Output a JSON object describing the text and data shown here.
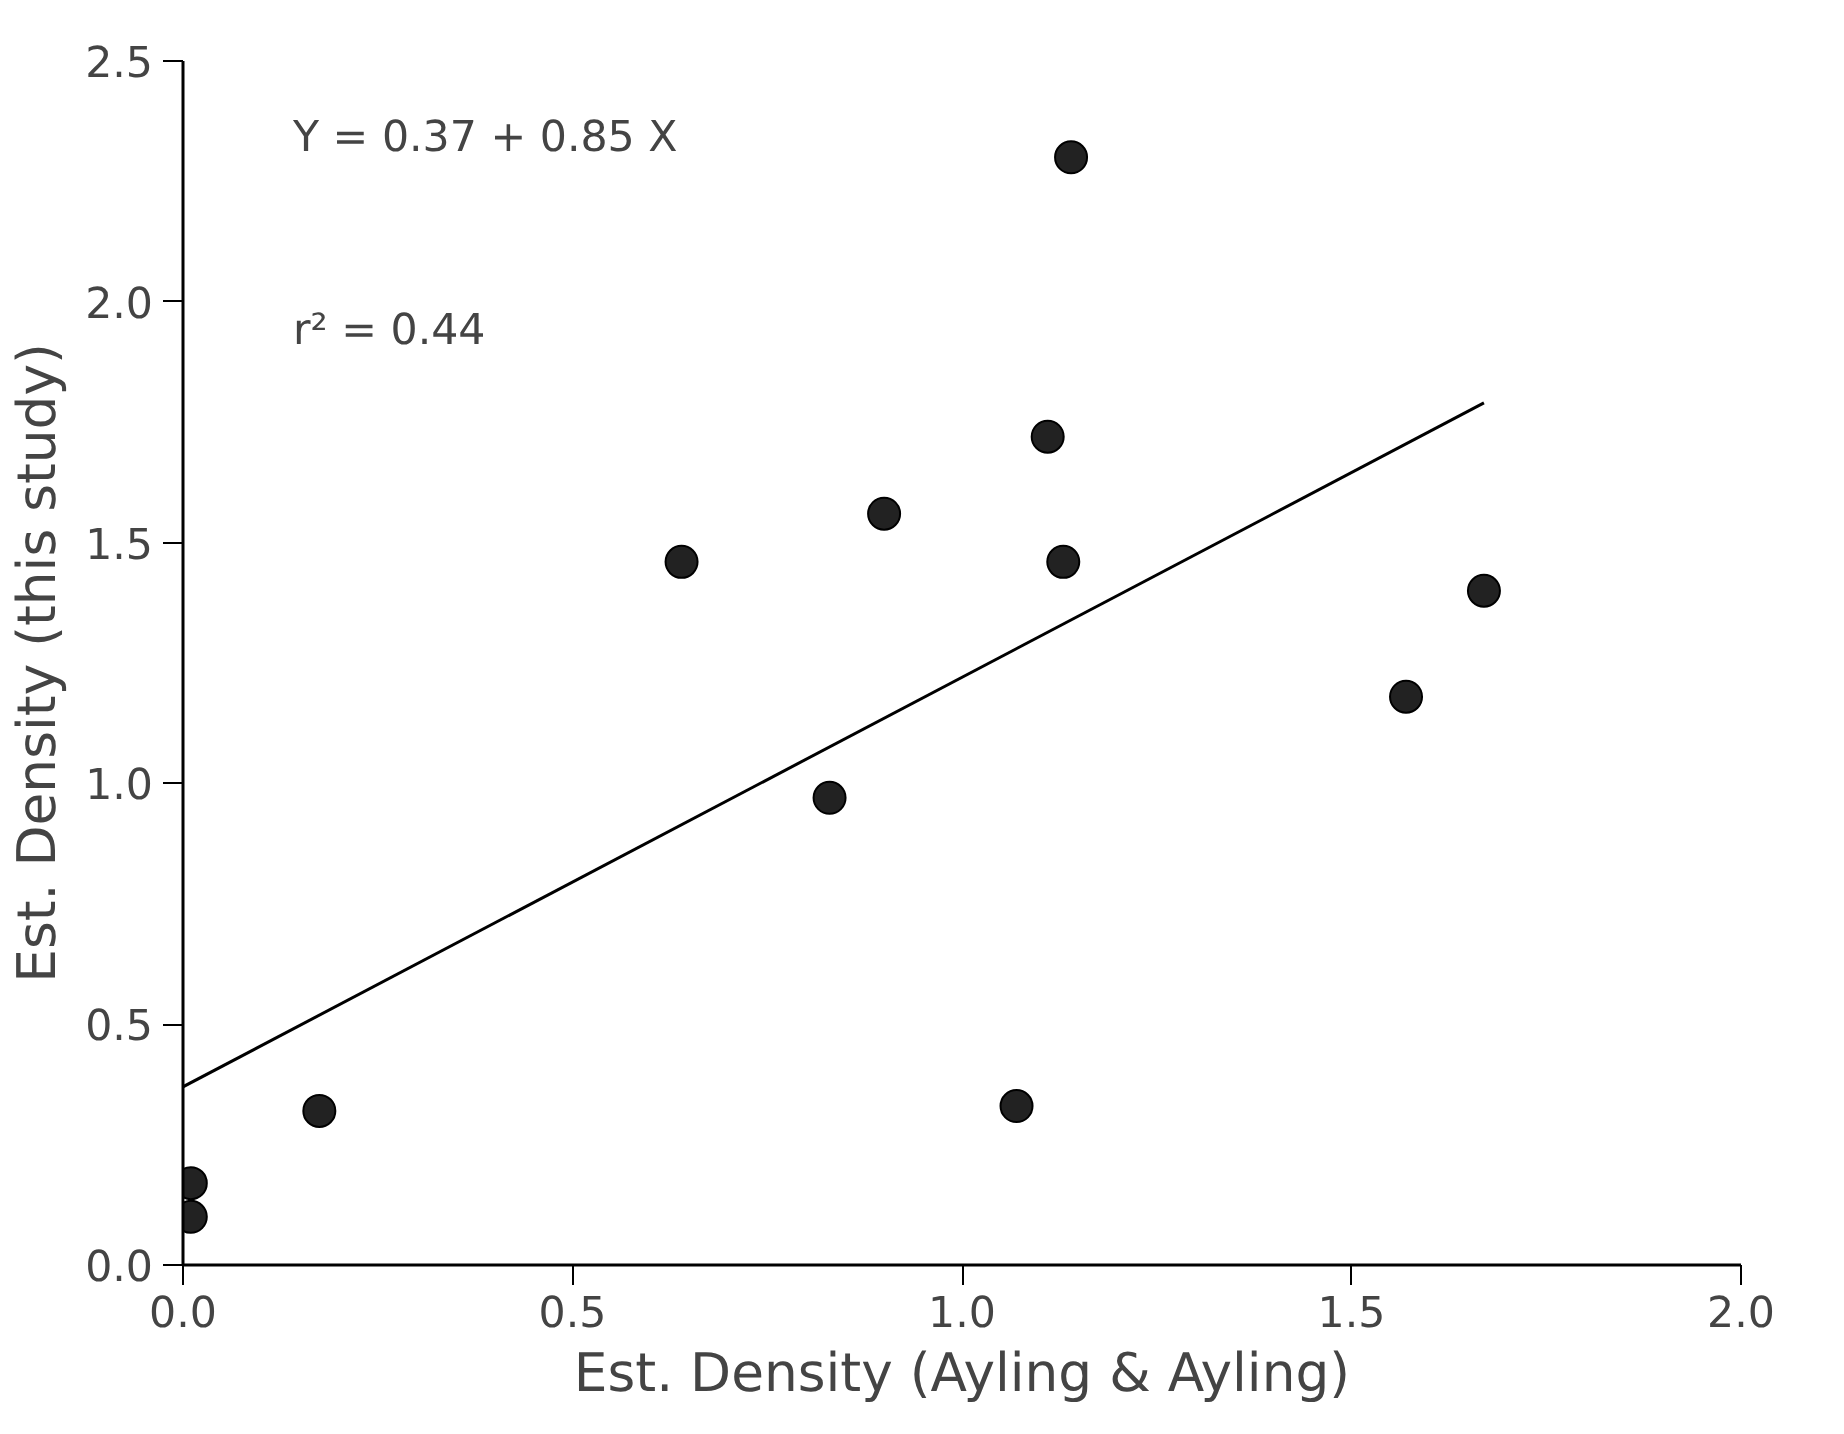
{
  "chart_data": {
    "type": "scatter",
    "xlabel": "Est. Density (Ayling & Ayling)",
    "ylabel": "Est. Density (this study)",
    "annotations": [
      "Y = 0.37 + 0.85 X",
      "r² = 0.44"
    ],
    "xlim": [
      0,
      2.0
    ],
    "ylim": [
      0,
      2.5
    ],
    "xticks": [
      {
        "value": 0,
        "label": "0.0"
      },
      0.5,
      {
        "value": 1,
        "label": "1.0"
      },
      1.5,
      {
        "value": 2,
        "label": "2.0"
      }
    ],
    "yticks": [
      {
        "value": 0,
        "label": "0.0"
      },
      0.5,
      {
        "value": 1,
        "label": "1.0"
      },
      1.5,
      {
        "value": 2,
        "label": "2.0"
      },
      2.5
    ],
    "grid": false,
    "marker": "circle",
    "series": [
      {
        "color": "#222222",
        "x": [
          0.01,
          0.01,
          0.175,
          0.64,
          0.83,
          0.9,
          1.14,
          1.11,
          1.13,
          1.07,
          1.67,
          1.57
        ],
        "values": [
          0.1,
          0.17,
          0.32,
          1.46,
          0.97,
          1.56,
          2.3,
          1.72,
          1.46,
          0.33,
          1.4,
          1.18
        ]
      },
      {
        "type": "line",
        "color": "#000000",
        "line_style": "solid",
        "marker": "none",
        "x": [
          0,
          1.67
        ],
        "values": [
          0.37,
          1.79
        ]
      }
    ]
  }
}
